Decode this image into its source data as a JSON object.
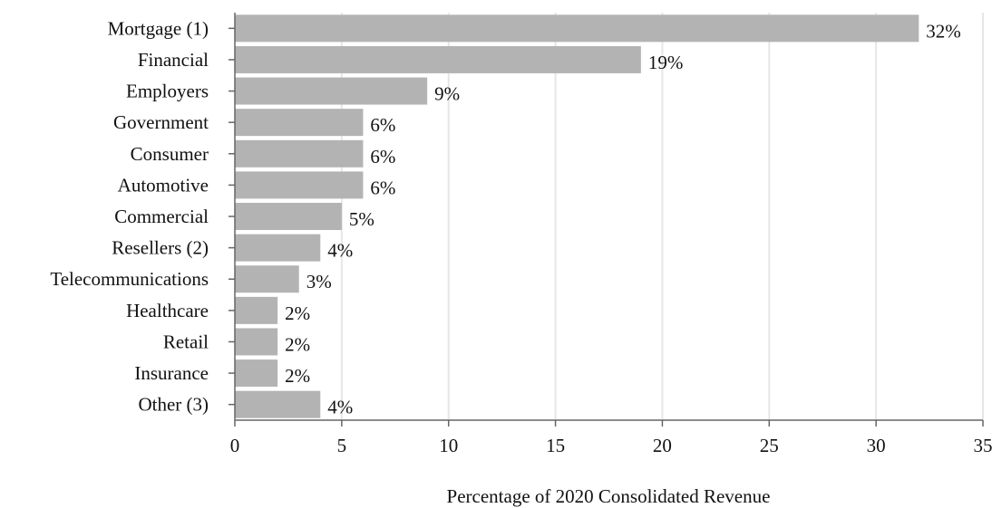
{
  "chart_data": {
    "type": "bar",
    "orientation": "horizontal",
    "categories": [
      "Mortgage (1)",
      "Financial",
      "Employers",
      "Government",
      "Consumer",
      "Automotive",
      "Commercial",
      "Resellers (2)",
      "Telecommunications",
      "Healthcare",
      "Retail",
      "Insurance",
      "Other (3)"
    ],
    "values": [
      32,
      19,
      9,
      6,
      6,
      6,
      5,
      4,
      3,
      2,
      2,
      2,
      4
    ],
    "data_labels": [
      "32%",
      "19%",
      "9%",
      "6%",
      "6%",
      "6%",
      "5%",
      "4%",
      "3%",
      "2%",
      "2%",
      "2%",
      "4%"
    ],
    "xlabel": "Percentage of 2020 Consolidated Revenue",
    "ylabel": "",
    "xlim": [
      0,
      35
    ],
    "xticks": [
      0,
      5,
      10,
      15,
      20,
      25,
      30,
      35
    ],
    "grid": "vertical",
    "legend": "none",
    "colors": {
      "bar": "#b3b3b3",
      "grid": "#e6e6e6",
      "axis": "#666666",
      "text": "#111111"
    }
  }
}
